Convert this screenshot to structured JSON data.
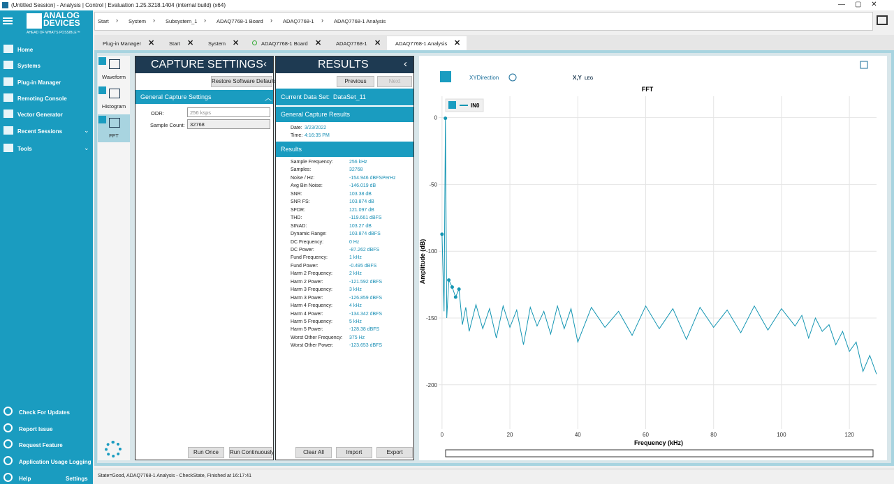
{
  "window": {
    "title": "(Untitled Session) - Analysis | Control | Evaluation 1.25.3218.1404 (internal build) (x64)"
  },
  "sidebar": {
    "brand": [
      "ANALOG",
      "DEVICES"
    ],
    "tagline": "AHEAD OF WHAT'S POSSIBLE™",
    "nav": [
      "Home",
      "Systems",
      "Plug-in Manager",
      "Remoting Console",
      "Vector Generator",
      "Recent Sessions",
      "Tools"
    ],
    "bottom": [
      "Check For Updates",
      "Report Issue",
      "Request Feature",
      "Application Usage Logging",
      "Help"
    ],
    "settings": "Settings"
  },
  "breadcrumb": [
    "Start",
    "System",
    "Subsystem_1",
    "ADAQ7768-1 Board",
    "ADAQ7768-1",
    "ADAQ7768-1 Analysis"
  ],
  "tabs": [
    "Plug-in Manager",
    "Start",
    "System",
    "ADAQ7768-1 Board",
    "ADAQ7768-1",
    "ADAQ7768-1 Analysis"
  ],
  "tools": [
    "Waveform",
    "Histogram",
    "FFT"
  ],
  "capture": {
    "title": "CAPTURE SETTINGS",
    "restore": "Restore Software Defaults",
    "section": "General Capture Settings",
    "fields": [
      {
        "label": "ODR:",
        "value": "256 ksps"
      },
      {
        "label": "Sample Count:",
        "value": "32768"
      }
    ],
    "buttons": [
      "Run Once",
      "Run Continuously"
    ]
  },
  "results": {
    "title": "RESULTS",
    "previous": "Previous",
    "next": "Next",
    "dataset_label": "Current Data Set:",
    "dataset": "DataSet_11",
    "section1": "General Capture Results",
    "date_label": "Date:",
    "date": "3/23/2022",
    "time_label": "Time:",
    "time": "4:16:35 PM",
    "section2": "Results",
    "rows": [
      [
        "Sample Frequency:",
        "256 kHz"
      ],
      [
        "Samples:",
        "32768"
      ],
      [
        "Noise / Hz:",
        "-154.946 dBFSPerHz"
      ],
      [
        "Avg Bin Noise:",
        "-146.019 dB"
      ],
      [
        "SNR:",
        "103.38 dB"
      ],
      [
        "SNR FS:",
        "103.874 dB"
      ],
      [
        "SFDR:",
        "121.097 dB"
      ],
      [
        "THD:",
        "-119.661 dBFS"
      ],
      [
        "SINAD:",
        "103.27 dB"
      ],
      [
        "Dynamic Range:",
        "103.874 dBFS"
      ],
      [
        "DC Frequency:",
        "0 Hz"
      ],
      [
        "DC Power:",
        "-87.262 dBFS"
      ],
      [
        "Fund Frequency:",
        "1 kHz"
      ],
      [
        "Fund Power:",
        "-0.495 dBFS"
      ],
      [
        "Harm 2 Frequency:",
        "2 kHz"
      ],
      [
        "Harm 2 Power:",
        "-121.592 dBFS"
      ],
      [
        "Harm 3 Frequency:",
        "3 kHz"
      ],
      [
        "Harm 3 Power:",
        "-126.859 dBFS"
      ],
      [
        "Harm 4 Frequency:",
        "4 kHz"
      ],
      [
        "Harm 4 Power:",
        "-134.342 dBFS"
      ],
      [
        "Harm 5 Frequency:",
        "5 kHz"
      ],
      [
        "Harm 5 Power:",
        "-128.38 dBFS"
      ],
      [
        "Worst Other Frequency:",
        "375 Hz"
      ],
      [
        "Worst Other Power:",
        "-123.653 dBFS"
      ]
    ],
    "buttons": [
      "Clear All",
      "Import",
      "Export"
    ]
  },
  "toolbar": {
    "direction": "XYDirection",
    "xy": "X,Y",
    "leg": "LEG"
  },
  "chart_data": {
    "type": "line",
    "title": "FFT",
    "x_label": "Frequency (kHz)",
    "y_label": "Amplitude (dB)",
    "x": [
      0,
      0.6,
      1,
      1.4,
      2,
      3,
      4,
      5,
      6,
      7,
      8,
      10,
      12,
      14,
      16,
      18,
      20,
      22,
      24,
      26,
      28,
      30,
      32,
      34,
      36,
      38,
      40,
      44,
      48,
      52,
      56,
      60,
      64,
      68,
      72,
      76,
      80,
      84,
      88,
      92,
      96,
      100,
      104,
      106,
      108,
      110,
      112,
      114,
      116,
      118,
      120,
      122,
      124,
      126,
      128
    ],
    "series": [
      {
        "name": "IN0",
        "color": "#1596b3",
        "values": [
          -87.262,
          -145,
          -0.495,
          -150,
          -121.6,
          -126.9,
          -134.3,
          -128.4,
          -155,
          -142,
          -160,
          -140,
          -158,
          -143,
          -165,
          -141,
          -157,
          -144,
          -170,
          -142,
          -156,
          -145,
          -162,
          -141,
          -158,
          -143,
          -168,
          -142,
          -157,
          -145,
          -163,
          -141,
          -158,
          -143,
          -166,
          -142,
          -157,
          -144,
          -161,
          -141,
          -159,
          -143,
          -156,
          -148,
          -165,
          -150,
          -160,
          -155,
          -170,
          -160,
          -175,
          -168,
          -190,
          -178,
          -192
        ]
      }
    ],
    "markers": {
      "x": [
        0,
        1,
        2,
        3,
        4,
        5
      ],
      "values": [
        -87.262,
        -0.495,
        -121.592,
        -126.859,
        -134.342,
        -128.38
      ]
    },
    "xlim": [
      -1,
      128
    ],
    "ylim": [
      -233,
      16
    ],
    "xticks": [
      0,
      20,
      40,
      60,
      80,
      100,
      120
    ],
    "yticks": [
      0,
      -50,
      -100,
      -150,
      -200
    ],
    "grid": true
  },
  "status": "State=Good, ADAQ7768-1 Analysis - CheckState, Finished at 16:17:41"
}
